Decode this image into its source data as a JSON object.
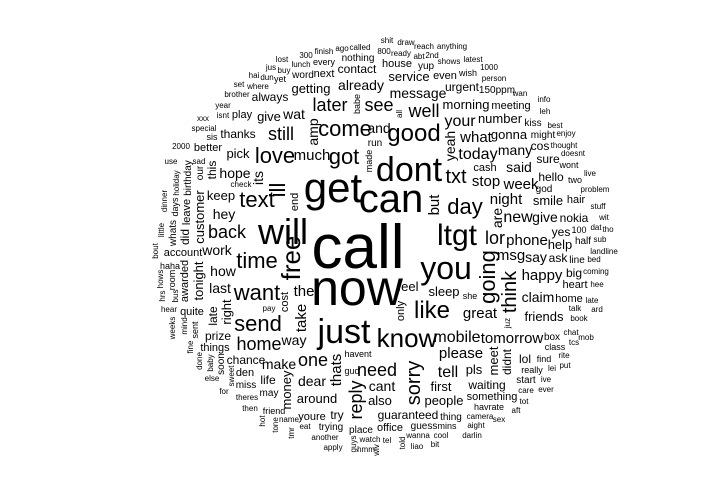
{
  "words": [
    "call",
    "now",
    "can",
    "get",
    "will",
    "dont",
    "just",
    "ltgt",
    "you",
    "know",
    "free",
    "like",
    "good",
    "come",
    "got",
    "day",
    "time",
    "want",
    "send",
    "love",
    "going",
    "sorry",
    "ill",
    "text",
    "home",
    "txt",
    "lor",
    "reply",
    "think",
    "need",
    "later",
    "see",
    "still",
    "one",
    "tell",
    "mobile",
    "back",
    "today",
    "your",
    "well",
    "new",
    "great",
    "the",
    "but",
    "much",
    "stop",
    "night",
    "please",
    "take",
    "phone",
    "msg",
    "what",
    "week",
    "thats",
    "tomorrow",
    "happy",
    "cant",
    "and",
    "are",
    "way",
    "said",
    "work",
    "hope",
    "yeah",
    "message",
    "claim",
    "say",
    "hey",
    "its",
    "give",
    "dear",
    "how",
    "make",
    "amp",
    "wat",
    "already",
    "last",
    "many",
    "right",
    "feel",
    "sleep",
    "first",
    "smile",
    "meet",
    "pls",
    "keep",
    "morning",
    "gonna",
    "customer",
    "also",
    "pick",
    "friends",
    "number",
    "tonight",
    "around",
    "people",
    "getting",
    "help",
    "money",
    "service",
    "give",
    "waiting",
    "hello",
    "late",
    "guaranteed",
    "chance",
    "thanks",
    "urgent",
    "didnt",
    "prize",
    "contact",
    "ask",
    "yes",
    "this",
    "nokia",
    "life",
    "sure",
    "lol",
    "did",
    "always",
    "cos",
    "try",
    "big",
    "only",
    "account",
    "cash",
    "next",
    "even",
    "leave",
    "something",
    "home",
    "meeting",
    "heart",
    "end",
    "play",
    "house",
    "things",
    "youre",
    "awarded",
    "office",
    "better",
    "quite",
    "hair",
    "cost",
    "den",
    "run",
    "might",
    "god",
    "our",
    "line",
    "may",
    "thing",
    "box",
    "birthday",
    "half",
    "word",
    "nothing",
    "kiss",
    "whats",
    "150ppm",
    "guess",
    "place",
    "miss",
    "soon",
    "trying",
    "start",
    "yup",
    "havent",
    "made",
    "she",
    "gud",
    "100",
    "really",
    "babe",
    "find",
    "class",
    "sis",
    "two",
    "sent",
    "havrate",
    "wont",
    "friend",
    "wish",
    "days",
    "yet",
    "every",
    "mins",
    "haha",
    "room",
    "pay",
    "check",
    "talk",
    "chat",
    "all",
    "sad",
    "camera",
    "wanna",
    "ready",
    "juz",
    "name",
    "isnt",
    "thought",
    "book",
    "sweet",
    "abt",
    "watch",
    "theres",
    "where",
    "baby",
    "bed",
    "shows",
    "special",
    "lunch",
    "bus",
    "eat",
    "another",
    "brother",
    "person",
    "mind",
    "doesnt",
    "800",
    "tel",
    "coming",
    "holiday",
    "2nd",
    "care",
    "dat",
    "buy",
    "told",
    "dun",
    "wan",
    "cool",
    "best",
    "guys",
    "late",
    "lei",
    "rite",
    "called",
    "little",
    "sub",
    "leh",
    "aight",
    "hee",
    "fine",
    "finish",
    "problem",
    "tcs",
    "landline",
    "dinner",
    "stuff",
    "enjoy",
    "year",
    "then",
    "done",
    "hear",
    "ago",
    "live",
    "else",
    "tone",
    "ive",
    "300",
    "tot",
    "reach",
    "hows",
    "1000",
    "wit",
    "liao",
    "for",
    "tmr",
    "draw",
    "latest",
    "jus",
    "sex",
    "hrs",
    "bit",
    "hmm",
    "xxx",
    "hai",
    "wiv",
    "shit",
    "ard",
    "darlin",
    "put",
    "bout",
    "aft",
    "set",
    "apply",
    "2000",
    "weeks",
    "lost",
    "tho",
    "info",
    "mob",
    "hot",
    "ever",
    "use",
    "anything"
  ]
}
